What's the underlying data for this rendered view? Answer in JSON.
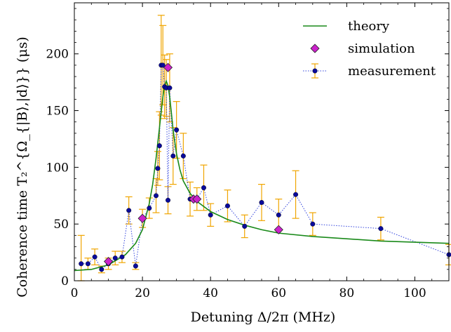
{
  "chart_data": {
    "type": "scatter",
    "xlabel": "Detuning Δ/2π (MHz)",
    "ylabel": "Coherence time T₂^{Ω_{|B⟩,|d⟩}} (μs)",
    "xlim": [
      0,
      110
    ],
    "ylim": [
      0,
      245
    ],
    "x_ticks": [
      "0",
      "20",
      "40",
      "60",
      "80",
      "100"
    ],
    "y_ticks": [
      "0",
      "50",
      "100",
      "150",
      "200"
    ],
    "legend_position": "top-right",
    "series": [
      {
        "name": "theory",
        "kind": "line",
        "color": "#1a8a1a",
        "x": [
          0,
          5,
          10,
          15,
          18,
          20,
          22,
          23,
          24,
          25,
          26,
          26.5,
          27,
          27.5,
          28,
          28.5,
          29,
          30,
          31,
          32,
          34,
          36,
          40,
          45,
          50,
          55,
          60,
          70,
          80,
          90,
          100,
          110
        ],
        "y": [
          9,
          10,
          14,
          23,
          33,
          45,
          68,
          85,
          108,
          135,
          162,
          172,
          176,
          172,
          162,
          148,
          133,
          112,
          98,
          88,
          77,
          70,
          61,
          54,
          49,
          45,
          42,
          39,
          37,
          35,
          34,
          33
        ]
      },
      {
        "name": "simulation",
        "kind": "diamond",
        "color": "#cc22cc",
        "x": [
          10,
          20,
          27.5,
          35,
          36,
          60
        ],
        "y": [
          17,
          55,
          188,
          72,
          72,
          45
        ]
      },
      {
        "name": "measurement",
        "kind": "errorbar",
        "color": "#0a0a9a",
        "line_color": "#3344dd",
        "error_color": "#f0a500",
        "x": [
          2,
          4,
          6,
          8,
          10,
          12,
          14,
          16,
          18,
          20,
          22,
          24,
          24.5,
          25,
          25.5,
          26,
          26.5,
          27,
          27.5,
          28,
          29,
          30,
          32,
          34,
          36,
          38,
          40,
          45,
          50,
          55,
          60,
          65,
          70,
          90,
          110
        ],
        "y": [
          15,
          15,
          21,
          10,
          15,
          20,
          21,
          62,
          13,
          55,
          64,
          75,
          99,
          119,
          190,
          190,
          171,
          170,
          71,
          170,
          110,
          133,
          110,
          72,
          72,
          82,
          58,
          66,
          48,
          69,
          58,
          76,
          50,
          46,
          23
        ],
        "err": [
          25,
          5,
          7,
          3,
          5,
          6,
          5,
          12,
          3,
          8,
          9,
          15,
          15,
          30,
          44,
          35,
          28,
          25,
          12,
          30,
          25,
          25,
          20,
          15,
          10,
          20,
          10,
          14,
          10,
          16,
          14,
          21,
          10,
          10,
          9
        ]
      }
    ]
  }
}
